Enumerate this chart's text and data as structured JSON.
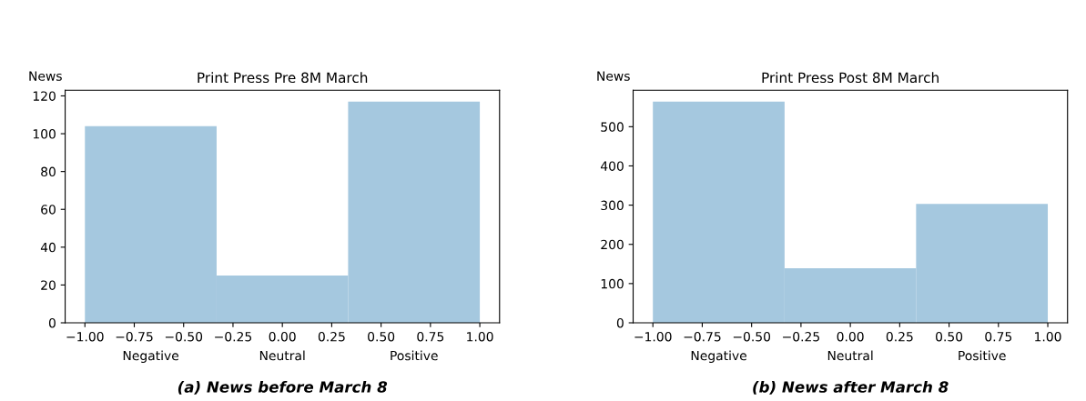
{
  "chart_data": [
    {
      "type": "histogram",
      "title": "Print Press Pre 8M March",
      "ylabel": "News",
      "bins": [
        -1,
        -0.333,
        0.333,
        1
      ],
      "values": [
        104,
        25,
        117
      ],
      "color": "#a5c8df",
      "xlim": [
        -1.1,
        1.1
      ],
      "xticks": [
        {
          "value": -1,
          "label": "−1.00"
        },
        {
          "value": -0.75,
          "label": "−0.75"
        },
        {
          "value": -0.5,
          "label": "−0.50"
        },
        {
          "value": -0.25,
          "label": "−0.25"
        },
        {
          "value": 0,
          "label": "0.00"
        },
        {
          "value": 0.25,
          "label": "0.25"
        },
        {
          "value": 0.5,
          "label": "0.50"
        },
        {
          "value": 0.75,
          "label": "0.75"
        },
        {
          "value": 1,
          "label": "1.00"
        }
      ],
      "ylim": [
        0,
        123
      ],
      "yticks": [
        0,
        20,
        40,
        60,
        80,
        100,
        120
      ],
      "grid": false,
      "annotations": [
        "Negative",
        "Neutral",
        "Positive",
        "(a) News before March 8"
      ]
    },
    {
      "type": "histogram",
      "title": "Print Press Post 8M March",
      "ylabel": "News",
      "bins": [
        -1,
        -0.333,
        0.333,
        1
      ],
      "values": [
        564,
        139,
        303
      ],
      "color": "#a5c8df",
      "xlim": [
        -1.1,
        1.1
      ],
      "xticks": [
        {
          "value": -1,
          "label": "−1.00"
        },
        {
          "value": -0.75,
          "label": "−0.75"
        },
        {
          "value": -0.5,
          "label": "−0.50"
        },
        {
          "value": -0.25,
          "label": "−0.25"
        },
        {
          "value": 0,
          "label": "0.00"
        },
        {
          "value": 0.25,
          "label": "0.25"
        },
        {
          "value": 0.5,
          "label": "0.50"
        },
        {
          "value": 0.75,
          "label": "0.75"
        },
        {
          "value": 1,
          "label": "1.00"
        }
      ],
      "ylim": [
        0,
        593
      ],
      "yticks": [
        0,
        100,
        200,
        300,
        400,
        500
      ],
      "grid": false,
      "annotations": [
        "Negative",
        "Neutral",
        "Positive",
        "(b) News after March 8"
      ]
    }
  ]
}
